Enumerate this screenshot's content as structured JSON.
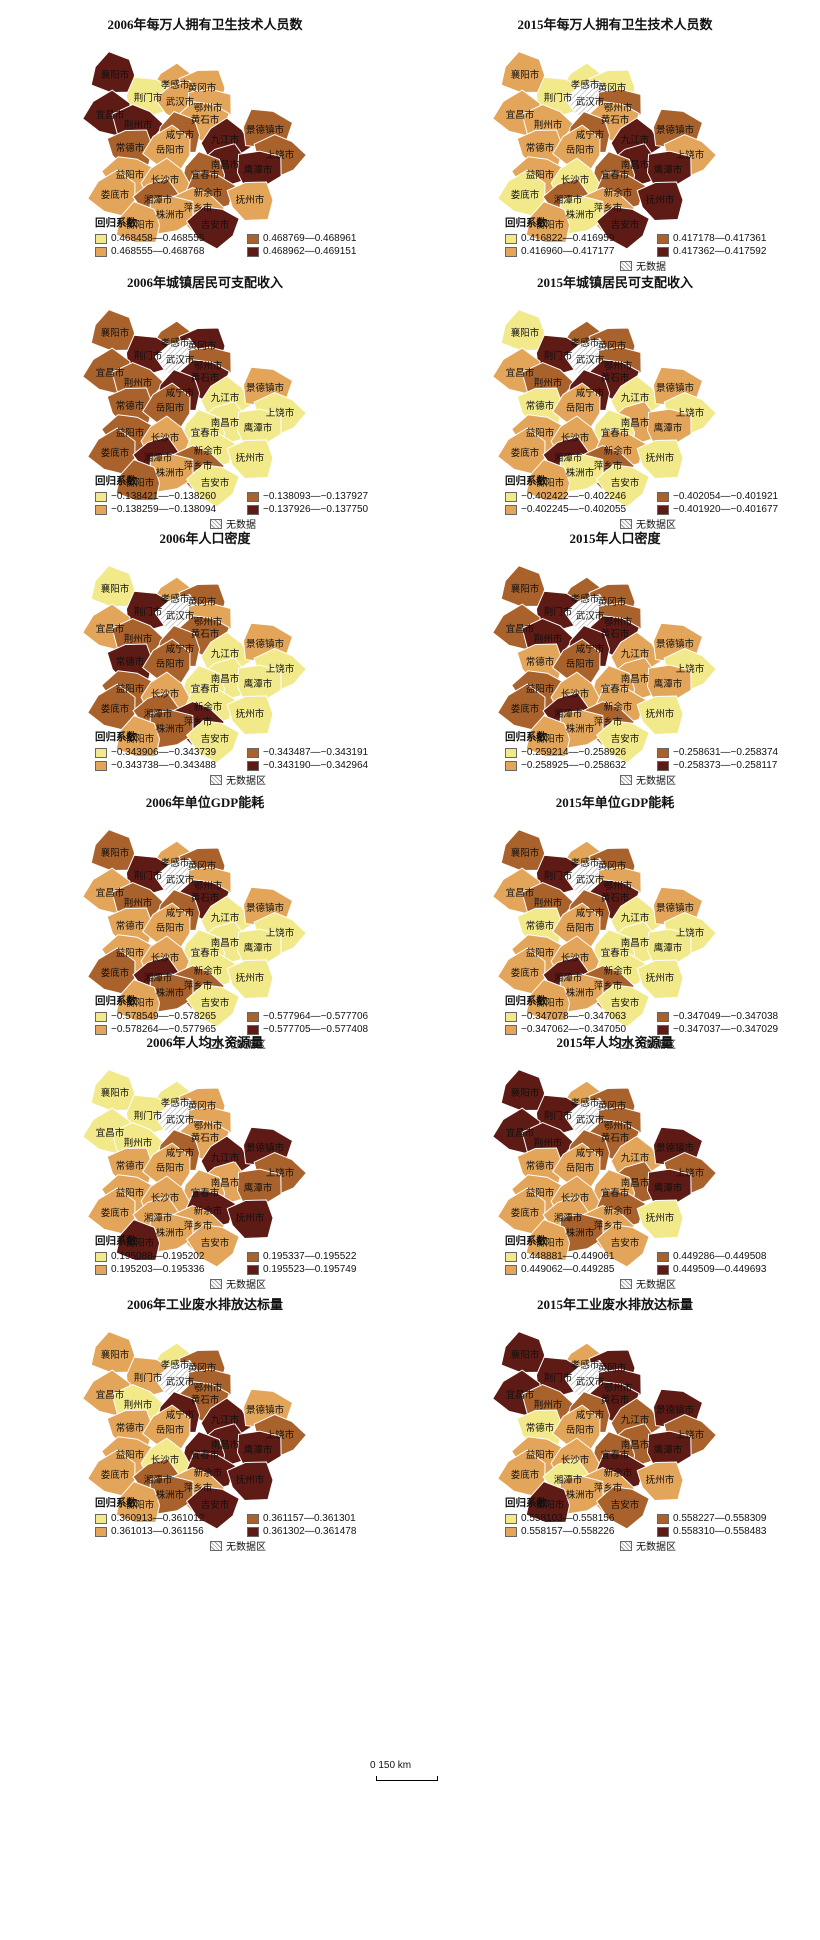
{
  "panels": [
    {
      "title": "2006年每万人拥有卫生技术人员数",
      "legend_title": "回归系数",
      "classes": [
        "0.468458—0.468555",
        "0.468555—0.468768",
        "0.468769—0.468961",
        "0.468962—0.469151"
      ],
      "nodata": ""
    },
    {
      "title": "2015年每万人拥有卫生技术人员数",
      "legend_title": "回归系数",
      "classes": [
        "0.416822—0.416959",
        "0.416960—0.417177",
        "0.417178—0.417361",
        "0.417362—0.417592"
      ],
      "nodata": "无数据"
    },
    {
      "title": "2006年城镇居民可支配收入",
      "legend_title": "回归系数",
      "classes": [
        "−0.138421—−0.138260",
        "−0.138259—−0.138094",
        "−0.138093—−0.137927",
        "−0.137926—−0.137750"
      ],
      "nodata": "无数据"
    },
    {
      "title": "2015年城镇居民可支配收入",
      "legend_title": "回归系数",
      "classes": [
        "−0.402422—−0.402246",
        "−0.402245—−0.402055",
        "−0.402054—−0.401921",
        "−0.401920—−0.401677"
      ],
      "nodata": "无数据区"
    },
    {
      "title": "2006年人口密度",
      "legend_title": "回归系数",
      "classes": [
        "−0.343906—−0.343739",
        "−0.343738—−0.343488",
        "−0.343487—−0.343191",
        "−0.343190—−0.342964"
      ],
      "nodata": "无数据区"
    },
    {
      "title": "2015年人口密度",
      "legend_title": "回归系数",
      "classes": [
        "−0.259214—−0.258926",
        "−0.258925—−0.258632",
        "−0.258631—−0.258374",
        "−0.258373—−0.258117"
      ],
      "nodata": "无数据区"
    },
    {
      "title": "2006年单位GDP能耗",
      "legend_title": "回归系数",
      "classes": [
        "−0.578549—−0.578265",
        "−0.578264—−0.577965",
        "−0.577964—−0.577706",
        "−0.577705—−0.577408"
      ],
      "nodata": "无数据区"
    },
    {
      "title": "2015年单位GDP能耗",
      "legend_title": "回归系数",
      "classes": [
        "−0.347078—−0.347063",
        "−0.347062—−0.347050",
        "−0.347049—−0.347038",
        "−0.347037—−0.347029"
      ],
      "nodata": "无数据区"
    },
    {
      "title": "2006年人均水资源量",
      "legend_title": "回归系数",
      "classes": [
        "0.195088—0.195202",
        "0.195203—0.195336",
        "0.195337—0.195522",
        "0.195523—0.195749"
      ],
      "nodata": "无数据区"
    },
    {
      "title": "2015年人均水资源量",
      "legend_title": "回归系数",
      "classes": [
        "0.448881—0.449061",
        "0.449062—0.449285",
        "0.449286—0.449508",
        "0.449509—0.449693"
      ],
      "nodata": "无数据区"
    },
    {
      "title": "2006年工业废水排放达标量",
      "legend_title": "回归系数",
      "classes": [
        "0.360913—0.361012",
        "0.361013—0.361156",
        "0.361157—0.361301",
        "0.361302—0.361478"
      ],
      "nodata": "无数据区"
    },
    {
      "title": "2015年工业废水排放达标量",
      "legend_title": "回归系数",
      "classes": [
        "0.558103—0.558156",
        "0.558157—0.558226",
        "0.558227—0.558309",
        "0.558310—0.558483"
      ],
      "nodata": "无数据区"
    }
  ],
  "class_colors": [
    "#f2e98a",
    "#e2a55a",
    "#a9622c",
    "#5e1a14"
  ],
  "nodata_color": "#dddddd",
  "cities": [
    "襄阳市",
    "孝感市",
    "荆门市",
    "黄冈市",
    "宜昌市",
    "武汉市",
    "荆州市",
    "鄂州市",
    "黄石市",
    "咸宁市",
    "九江市",
    "景德镇市",
    "常德市",
    "岳阳市",
    "南昌市",
    "上饶市",
    "鹰潭市",
    "益阳市",
    "宜春市",
    "长沙市",
    "新余市",
    "抚州市",
    "娄底市",
    "湘潭市",
    "萍乡市",
    "株洲市",
    "吉安市",
    "衡阳市"
  ],
  "city_classes": [
    [
      3,
      1,
      0,
      1,
      3,
      1,
      3,
      1,
      1,
      2,
      3,
      2,
      2,
      1,
      3,
      2,
      3,
      1,
      2,
      1,
      2,
      1,
      1,
      2,
      1,
      1,
      3,
      1
    ],
    [
      1,
      0,
      0,
      0,
      1,
      -1,
      1,
      2,
      1,
      2,
      3,
      2,
      1,
      1,
      3,
      1,
      3,
      1,
      2,
      0,
      2,
      3,
      0,
      2,
      1,
      0,
      3,
      1
    ],
    [
      2,
      2,
      3,
      3,
      2,
      -1,
      2,
      2,
      3,
      3,
      0,
      1,
      2,
      2,
      0,
      0,
      0,
      2,
      0,
      1,
      0,
      0,
      2,
      3,
      2,
      1,
      0,
      2
    ],
    [
      0,
      2,
      3,
      2,
      1,
      -1,
      2,
      2,
      3,
      3,
      0,
      1,
      0,
      1,
      1,
      0,
      1,
      1,
      0,
      1,
      1,
      0,
      1,
      3,
      2,
      0,
      0,
      1
    ],
    [
      0,
      1,
      3,
      2,
      1,
      -1,
      2,
      1,
      2,
      2,
      0,
      1,
      3,
      2,
      0,
      0,
      0,
      2,
      0,
      1,
      0,
      0,
      2,
      2,
      3,
      2,
      0,
      1
    ],
    [
      2,
      2,
      3,
      2,
      2,
      -1,
      3,
      2,
      3,
      3,
      1,
      1,
      1,
      2,
      1,
      0,
      1,
      2,
      1,
      1,
      1,
      0,
      2,
      3,
      2,
      1,
      0,
      1
    ],
    [
      2,
      1,
      3,
      2,
      1,
      -1,
      2,
      1,
      3,
      2,
      0,
      1,
      1,
      1,
      0,
      0,
      0,
      1,
      0,
      1,
      0,
      0,
      2,
      3,
      2,
      2,
      0,
      1
    ],
    [
      2,
      1,
      3,
      2,
      1,
      -1,
      2,
      1,
      3,
      2,
      0,
      1,
      0,
      1,
      0,
      0,
      0,
      1,
      0,
      1,
      0,
      0,
      1,
      3,
      2,
      1,
      0,
      1
    ],
    [
      0,
      0,
      0,
      1,
      0,
      -1,
      0,
      1,
      1,
      2,
      3,
      3,
      1,
      1,
      1,
      2,
      2,
      1,
      1,
      1,
      3,
      3,
      1,
      1,
      1,
      1,
      1,
      3
    ],
    [
      3,
      1,
      3,
      2,
      3,
      -1,
      3,
      2,
      2,
      2,
      1,
      3,
      1,
      1,
      2,
      2,
      3,
      1,
      1,
      1,
      2,
      0,
      1,
      1,
      1,
      2,
      1,
      1
    ],
    [
      1,
      0,
      1,
      2,
      1,
      -1,
      0,
      2,
      2,
      3,
      3,
      1,
      1,
      1,
      3,
      2,
      3,
      1,
      3,
      0,
      3,
      3,
      1,
      2,
      1,
      2,
      3,
      1
    ],
    [
      3,
      1,
      3,
      3,
      3,
      -1,
      2,
      3,
      3,
      2,
      2,
      3,
      0,
      1,
      2,
      2,
      3,
      1,
      2,
      1,
      3,
      1,
      1,
      0,
      1,
      1,
      2,
      3
    ]
  ],
  "scale_label": "0      150 km"
}
